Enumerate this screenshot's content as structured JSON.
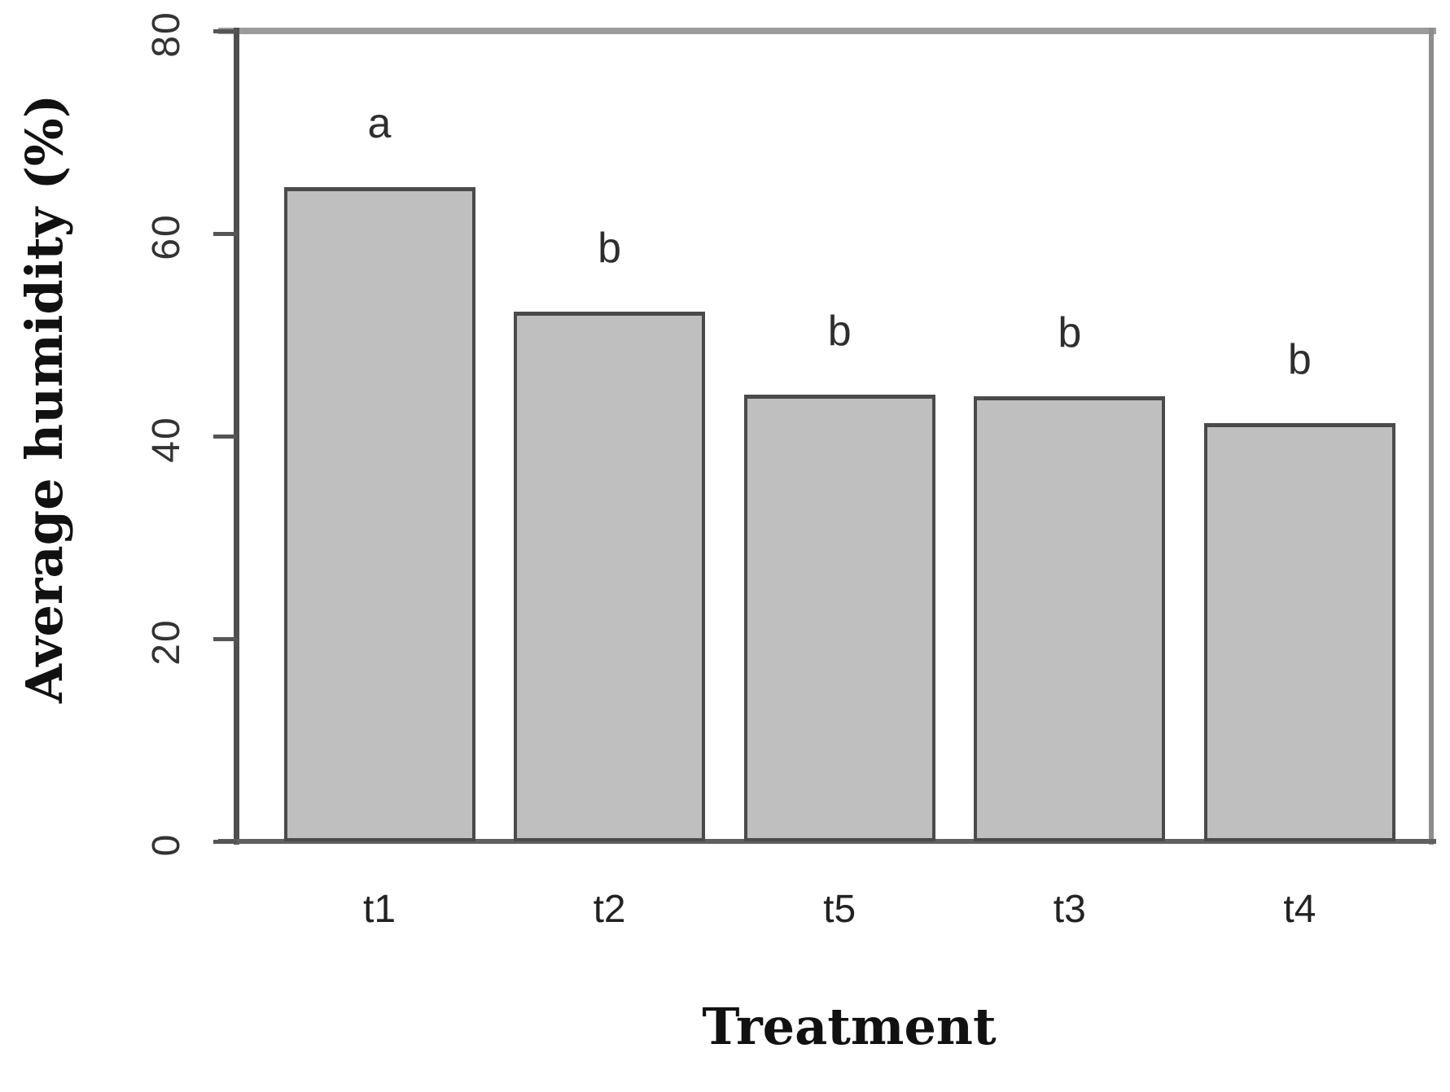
{
  "chart_data": {
    "type": "bar",
    "title": "",
    "xlabel": "Treatment",
    "ylabel": "Average humidity (%)",
    "categories": [
      "t1",
      "t2",
      "t5",
      "t3",
      "t4"
    ],
    "values": [
      64.6,
      52.3,
      44.1,
      43.9,
      41.3
    ],
    "bar_annotations": [
      "a",
      "b",
      "b",
      "b",
      "b"
    ],
    "ylim": [
      0,
      80
    ],
    "yticks": [
      0,
      20,
      40,
      60,
      80
    ],
    "grid": false,
    "legend": "none",
    "colors": {
      "bar_fill": "#bfbfbf",
      "bar_border": "#4a4a4a",
      "axis_line": "#4f4f4f",
      "frame_line": "#9b9b9b",
      "tick_text": "#333333",
      "title_text": "#111111"
    }
  }
}
